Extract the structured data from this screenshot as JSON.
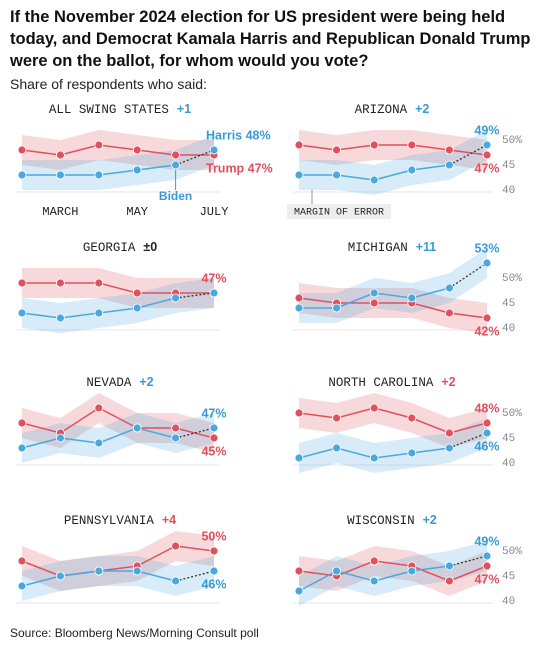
{
  "title": "If the November 2024 election for US president were being held today, and Democrat Kamala Harris and Republican Donald Trump were on the ballot, for whom would you vote?",
  "subtitle": "Share of respondents who said:",
  "source": "Source: Bloomberg News/Morning Consult poll",
  "chart_data": [
    {
      "type": "line",
      "title": "ALL SWING STATES",
      "lead": "+1",
      "lead_color": "#3a9ad9",
      "categories": [
        null,
        "MARCH",
        null,
        "MAY",
        null,
        "JULY"
      ],
      "ylim": [
        38,
        55
      ],
      "margin": 3,
      "annotation": "Biden",
      "series": [
        {
          "color": "#e0505d",
          "values": [
            48,
            47,
            49,
            48,
            47,
            47
          ],
          "value_labels": [
            null,
            null,
            null,
            null,
            null,
            "Trump 47%"
          ]
        },
        {
          "color": "#4aa8e0",
          "values": [
            43,
            43,
            43,
            44,
            45,
            48
          ],
          "value_labels": [
            null,
            null,
            null,
            null,
            null,
            "Harris 48%"
          ]
        }
      ]
    },
    {
      "type": "line",
      "title": "ARIZONA",
      "lead": "+2",
      "lead_color": "#3a9ad9",
      "ylim": [
        38,
        55
      ],
      "yticks": [
        {
          "value": 50,
          "label": "50%"
        },
        45,
        40
      ],
      "margin": 3,
      "annotation": "MARGIN OF ERROR",
      "series": [
        {
          "color": "#e0505d",
          "values": [
            49,
            48,
            49,
            49,
            48,
            47
          ],
          "value_labels": [
            null,
            null,
            null,
            null,
            null,
            "47%"
          ]
        },
        {
          "color": "#4aa8e0",
          "values": [
            43,
            43,
            42,
            44,
            45,
            49
          ],
          "value_labels": [
            null,
            null,
            null,
            null,
            null,
            "49%"
          ]
        }
      ]
    },
    {
      "type": "line",
      "title": "GEORGIA",
      "lead": "±0",
      "lead_color": "#222222",
      "ylim": [
        38,
        55
      ],
      "margin": 3,
      "series": [
        {
          "color": "#e0505d",
          "values": [
            49,
            49,
            49,
            47,
            47,
            47
          ],
          "value_labels": [
            null,
            null,
            null,
            null,
            null,
            "47%"
          ]
        },
        {
          "color": "#4aa8e0",
          "values": [
            43,
            42,
            43,
            44,
            46,
            47
          ]
        }
      ]
    },
    {
      "type": "line",
      "title": "MICHIGAN",
      "lead": "+11",
      "lead_color": "#3a9ad9",
      "ylim": [
        38,
        55
      ],
      "yticks": [
        {
          "value": 50,
          "label": "50%"
        },
        45,
        40
      ],
      "margin": 3,
      "series": [
        {
          "color": "#e0505d",
          "values": [
            46,
            45,
            45,
            45,
            43,
            42
          ],
          "value_labels": [
            null,
            null,
            null,
            null,
            null,
            "42%"
          ]
        },
        {
          "color": "#4aa8e0",
          "values": [
            44,
            44,
            47,
            46,
            48,
            53
          ],
          "value_labels": [
            null,
            null,
            null,
            null,
            null,
            "53%"
          ]
        }
      ]
    },
    {
      "type": "line",
      "title": "NEVADA",
      "lead": "+2",
      "lead_color": "#3a9ad9",
      "ylim": [
        38,
        55
      ],
      "margin": 3,
      "series": [
        {
          "color": "#e0505d",
          "values": [
            48,
            46,
            51,
            47,
            47,
            45
          ],
          "value_labels": [
            null,
            null,
            null,
            null,
            null,
            "45%"
          ]
        },
        {
          "color": "#4aa8e0",
          "values": [
            43,
            45,
            44,
            47,
            45,
            47
          ],
          "value_labels": [
            null,
            null,
            null,
            null,
            null,
            "47%"
          ]
        }
      ]
    },
    {
      "type": "line",
      "title": "NORTH CAROLINA",
      "lead": "+2",
      "lead_color": "#e0505d",
      "ylim": [
        38,
        55
      ],
      "yticks": [
        {
          "value": 50,
          "label": "50%"
        },
        45,
        40
      ],
      "margin": 3,
      "series": [
        {
          "color": "#e0505d",
          "values": [
            50,
            49,
            51,
            49,
            46,
            48
          ],
          "value_labels": [
            null,
            null,
            null,
            null,
            null,
            "48%"
          ]
        },
        {
          "color": "#4aa8e0",
          "values": [
            41,
            43,
            41,
            42,
            43,
            46
          ],
          "value_labels": [
            null,
            null,
            null,
            null,
            null,
            "46%"
          ]
        }
      ]
    },
    {
      "type": "line",
      "title": "PENNSYLVANIA",
      "lead": "+4",
      "lead_color": "#e0505d",
      "ylim": [
        38,
        55
      ],
      "margin": 3,
      "series": [
        {
          "color": "#e0505d",
          "values": [
            48,
            45,
            46,
            47,
            51,
            50
          ],
          "value_labels": [
            null,
            null,
            null,
            null,
            null,
            "50%"
          ]
        },
        {
          "color": "#4aa8e0",
          "values": [
            43,
            45,
            46,
            46,
            44,
            46
          ],
          "value_labels": [
            null,
            null,
            null,
            null,
            null,
            "46%"
          ]
        }
      ]
    },
    {
      "type": "line",
      "title": "WISCONSIN",
      "lead": "+2",
      "lead_color": "#3a9ad9",
      "ylim": [
        38,
        55
      ],
      "yticks": [
        {
          "value": 50,
          "label": "50%"
        },
        45,
        40
      ],
      "margin": 3,
      "series": [
        {
          "color": "#e0505d",
          "values": [
            46,
            45,
            48,
            47,
            44,
            47
          ],
          "value_labels": [
            null,
            null,
            null,
            null,
            null,
            "47%"
          ]
        },
        {
          "color": "#4aa8e0",
          "values": [
            42,
            46,
            44,
            46,
            47,
            49
          ],
          "value_labels": [
            null,
            null,
            null,
            null,
            null,
            "49%"
          ]
        }
      ]
    }
  ]
}
